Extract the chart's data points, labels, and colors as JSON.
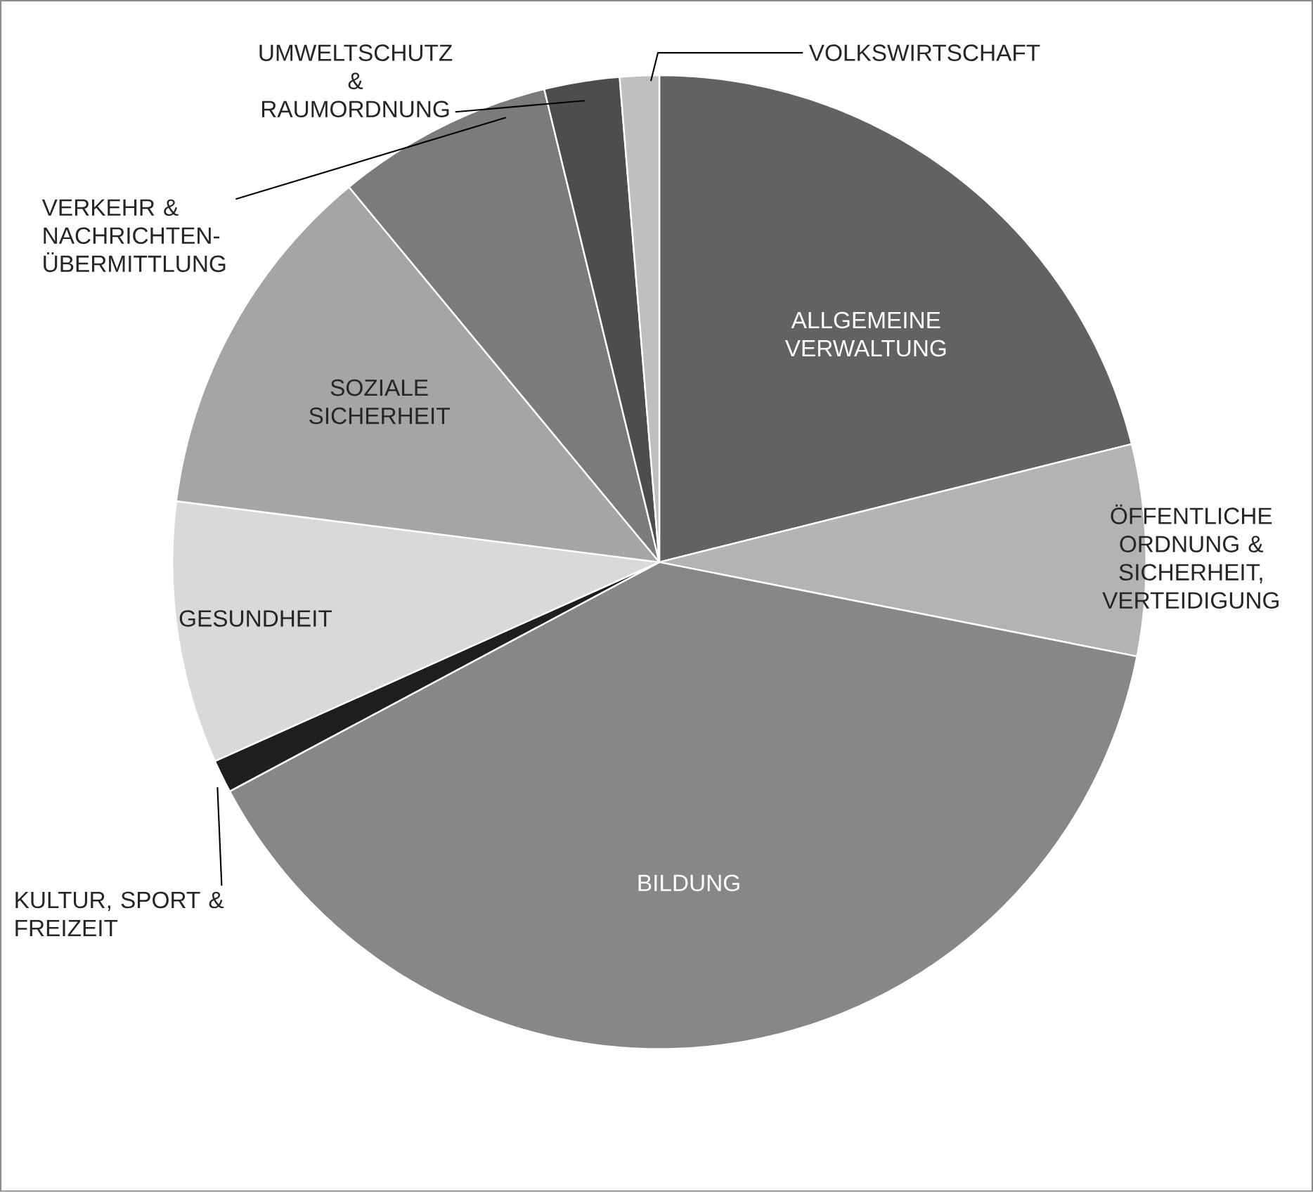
{
  "chart_data": {
    "type": "pie",
    "categories": [
      "ALLGEMEINE VERWALTUNG",
      "ÖFFENTLICHE ORDNUNG & SICHERHEIT, VERTEIDIGUNG",
      "BILDUNG",
      "KULTUR, SPORT & FREIZEIT",
      "GESUNDHEIT",
      "SOZIALE SICHERHEIT",
      "VERKEHR & NACHRICHTEN-ÜBERMITTLUNG",
      "UMWELTSCHUTZ & RAUMORDNUNG",
      "VOLKSWIRTSCHAFT"
    ],
    "values": [
      21.1,
      7.0,
      39.1,
      1.1,
      8.7,
      12.0,
      7.2,
      2.5,
      1.3
    ],
    "colors": [
      "#626262",
      "#b3b3b3",
      "#878787",
      "#1e1e1e",
      "#d9d9d9",
      "#a5a5a5",
      "#7b7b7b",
      "#4d4d4d",
      "#bfbfbf"
    ]
  }
}
